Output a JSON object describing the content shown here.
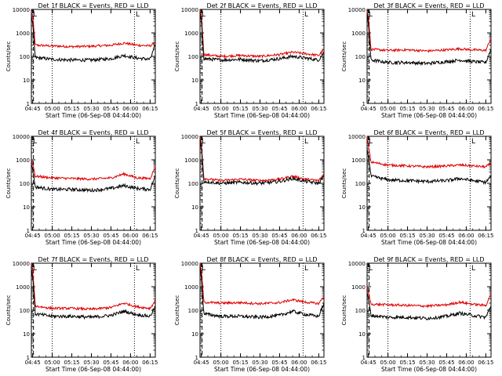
{
  "colors": {
    "events": "#000000",
    "lld": "#e00000",
    "axes": "#000000",
    "background": "#ffffff"
  },
  "common": {
    "xlabel": "Start Time (06-Sep-08 04:44:00)",
    "ylabel": "Counts/sec",
    "x_tick_labels": [
      "04:45",
      "05:00",
      "05:15",
      "05:30",
      "05:45",
      "06:00",
      "06:15"
    ],
    "y_tick_labels": [
      "1",
      "10",
      "100",
      "1000",
      "10000"
    ],
    "marker_box": "L",
    "marker_corner": "L"
  },
  "chart_data": [
    {
      "type": "line",
      "title": "Det 1f BLACK = Events, RED = LLD",
      "y_scale": "log",
      "ylim": [
        1,
        10000
      ],
      "x": [
        "04:44",
        "04:45",
        "04:47",
        "05:00",
        "05:15",
        "05:30",
        "05:45",
        "05:55",
        "06:05",
        "06:15",
        "06:19"
      ],
      "series": [
        {
          "color": "red",
          "values": [
            8000,
            5000,
            300,
            280,
            260,
            270,
            300,
            370,
            300,
            280,
            400
          ]
        },
        {
          "color": "black",
          "values": [
            5000,
            2500,
            90,
            75,
            70,
            70,
            80,
            110,
            85,
            75,
            300
          ]
        }
      ]
    },
    {
      "type": "line",
      "title": "Det 2f BLACK = Events, RED = LLD",
      "y_scale": "log",
      "ylim": [
        1,
        10000
      ],
      "x": [
        "04:44",
        "04:45",
        "04:47",
        "05:00",
        "05:15",
        "05:30",
        "05:45",
        "05:55",
        "06:05",
        "06:15",
        "06:19"
      ],
      "series": [
        {
          "color": "red",
          "values": [
            9000,
            6000,
            120,
            100,
            110,
            100,
            120,
            150,
            130,
            110,
            200
          ]
        },
        {
          "color": "black",
          "values": [
            6000,
            3000,
            80,
            70,
            75,
            65,
            80,
            100,
            85,
            70,
            150
          ]
        }
      ]
    },
    {
      "type": "line",
      "title": "Det 3f BLACK = Events, RED = LLD",
      "y_scale": "log",
      "ylim": [
        1,
        10000
      ],
      "x": [
        "04:44",
        "04:45",
        "04:47",
        "05:00",
        "05:15",
        "05:30",
        "05:45",
        "05:55",
        "06:05",
        "06:15",
        "06:19"
      ],
      "series": [
        {
          "color": "red",
          "values": [
            9000,
            5000,
            200,
            180,
            190,
            170,
            190,
            210,
            190,
            180,
            600
          ]
        },
        {
          "color": "black",
          "values": [
            6000,
            2500,
            70,
            55,
            55,
            50,
            60,
            70,
            60,
            55,
            200
          ]
        }
      ]
    },
    {
      "type": "line",
      "title": "Det 4f BLACK = Events, RED = LLD",
      "y_scale": "log",
      "ylim": [
        1,
        10000
      ],
      "x": [
        "04:44",
        "04:45",
        "04:47",
        "05:00",
        "05:15",
        "05:30",
        "05:45",
        "05:55",
        "06:05",
        "06:15",
        "06:19"
      ],
      "series": [
        {
          "color": "red",
          "values": [
            900,
            700,
            200,
            170,
            160,
            150,
            170,
            250,
            170,
            160,
            500
          ]
        },
        {
          "color": "black",
          "values": [
            700,
            400,
            70,
            55,
            55,
            50,
            60,
            80,
            60,
            55,
            200
          ]
        }
      ]
    },
    {
      "type": "line",
      "title": "Det 5f BLACK = Events, RED = LLD",
      "y_scale": "log",
      "ylim": [
        1,
        10000
      ],
      "x": [
        "04:44",
        "04:45",
        "04:47",
        "05:00",
        "05:15",
        "05:30",
        "05:45",
        "05:55",
        "06:05",
        "06:15",
        "06:19"
      ],
      "series": [
        {
          "color": "red",
          "values": [
            9000,
            5000,
            160,
            130,
            150,
            130,
            150,
            200,
            150,
            130,
            250
          ]
        },
        {
          "color": "black",
          "values": [
            7000,
            3000,
            120,
            100,
            110,
            100,
            120,
            160,
            120,
            100,
            200
          ]
        }
      ]
    },
    {
      "type": "line",
      "title": "Det 6f BLACK = Events, RED = LLD",
      "y_scale": "log",
      "ylim": [
        1,
        10000
      ],
      "x": [
        "04:44",
        "04:45",
        "04:47",
        "05:00",
        "05:15",
        "05:30",
        "05:45",
        "05:55",
        "06:05",
        "06:15",
        "06:19"
      ],
      "series": [
        {
          "color": "red",
          "values": [
            9000,
            4000,
            800,
            600,
            550,
            500,
            550,
            600,
            550,
            500,
            700
          ]
        },
        {
          "color": "black",
          "values": [
            3000,
            1500,
            200,
            140,
            130,
            120,
            130,
            160,
            130,
            110,
            200
          ]
        }
      ]
    },
    {
      "type": "line",
      "title": "Det 7f BLACK = Events, RED = LLD",
      "y_scale": "log",
      "ylim": [
        1,
        10000
      ],
      "x": [
        "04:44",
        "04:45",
        "04:47",
        "05:00",
        "05:15",
        "05:30",
        "05:45",
        "05:55",
        "06:05",
        "06:15",
        "06:19"
      ],
      "series": [
        {
          "color": "red",
          "values": [
            9000,
            5000,
            150,
            120,
            120,
            110,
            130,
            200,
            140,
            120,
            250
          ]
        },
        {
          "color": "black",
          "values": [
            6000,
            2500,
            70,
            55,
            55,
            50,
            60,
            90,
            65,
            55,
            150
          ]
        }
      ]
    },
    {
      "type": "line",
      "title": "Det 8f BLACK = Events, RED = LLD",
      "y_scale": "log",
      "ylim": [
        1,
        10000
      ],
      "x": [
        "04:44",
        "04:45",
        "04:47",
        "05:00",
        "05:15",
        "05:30",
        "05:45",
        "05:55",
        "06:05",
        "06:15",
        "06:19"
      ],
      "series": [
        {
          "color": "red",
          "values": [
            9000,
            5000,
            220,
            200,
            210,
            190,
            210,
            280,
            220,
            190,
            400
          ]
        },
        {
          "color": "black",
          "values": [
            6000,
            2500,
            70,
            55,
            55,
            50,
            60,
            90,
            65,
            55,
            200
          ]
        }
      ]
    },
    {
      "type": "line",
      "title": "Det 9f BLACK = Events, RED = LLD",
      "y_scale": "log",
      "ylim": [
        1,
        10000
      ],
      "x": [
        "04:44",
        "04:45",
        "04:47",
        "05:00",
        "05:15",
        "05:30",
        "05:45",
        "05:55",
        "06:05",
        "06:15",
        "06:19"
      ],
      "series": [
        {
          "color": "red",
          "values": [
            900,
            600,
            180,
            170,
            160,
            150,
            170,
            220,
            180,
            160,
            500
          ]
        },
        {
          "color": "black",
          "values": [
            500,
            300,
            60,
            50,
            50,
            45,
            55,
            75,
            60,
            50,
            150
          ]
        }
      ]
    }
  ]
}
